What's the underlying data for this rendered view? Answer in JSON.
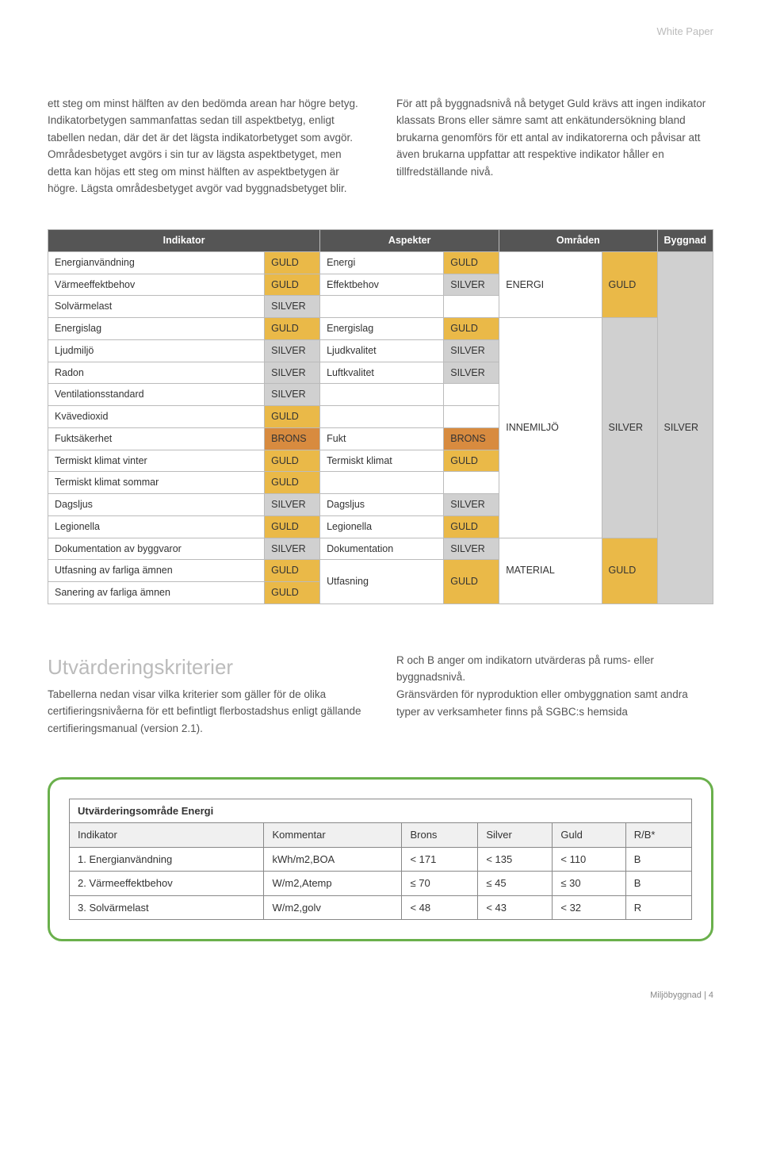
{
  "header_label": "White Paper",
  "intro": {
    "left": "ett steg om minst hälften av den bedömda arean har högre betyg. Indikatorbetygen sammanfattas sedan till aspektbetyg, enligt tabellen nedan, där det är det lägsta indikatorbetyget som avgör. Områdesbetyget avgörs i sin tur av lägsta aspektbetyget, men detta kan höjas ett steg om minst hälften av aspektbetygen är högre. Lägsta områdesbetyget avgör vad byggnadsbetyget blir.",
    "right": "För att på byggnadsnivå nå betyget Guld krävs att ingen indikator klassats Brons eller sämre samt att enkätundersökning bland brukarna genomförs för ett antal av indikatorerna och påvisar att även brukarna uppfattar att respektive indikator håller en tillfredställande nivå."
  },
  "main_table": {
    "headers": [
      "Indikator",
      "Aspekter",
      "Områden",
      "Byggnad"
    ],
    "colors": {
      "GULD": "#eab948",
      "SILVER": "#d0d0d0",
      "BRONS": "#d88b3f",
      "none": "#ffffff"
    },
    "rows": [
      {
        "indikator": "Energianvändning",
        "indikator_rating": "GULD",
        "aspekt": "Energi",
        "aspekt_rating": "GULD"
      },
      {
        "indikator": "Värmeeffektbehov",
        "indikator_rating": "GULD",
        "aspekt": "Effektbehov",
        "aspekt_rating": "SILVER"
      },
      {
        "indikator": "Solvärmelast",
        "indikator_rating": "SILVER",
        "aspekt": "",
        "aspekt_rating": ""
      },
      {
        "indikator": "Energislag",
        "indikator_rating": "GULD",
        "aspekt": "Energislag",
        "aspekt_rating": "GULD"
      },
      {
        "indikator": "Ljudmiljö",
        "indikator_rating": "SILVER",
        "aspekt": "Ljudkvalitet",
        "aspekt_rating": "SILVER"
      },
      {
        "indikator": "Radon",
        "indikator_rating": "SILVER",
        "aspekt": "Luftkvalitet",
        "aspekt_rating": "SILVER"
      },
      {
        "indikator": "Ventilationsstandard",
        "indikator_rating": "SILVER",
        "aspekt": "",
        "aspekt_rating": ""
      },
      {
        "indikator": "Kvävedioxid",
        "indikator_rating": "GULD",
        "aspekt": "",
        "aspekt_rating": ""
      },
      {
        "indikator": "Fuktsäkerhet",
        "indikator_rating": "BRONS",
        "aspekt": "Fukt",
        "aspekt_rating": "BRONS"
      },
      {
        "indikator": "Termiskt klimat vinter",
        "indikator_rating": "GULD",
        "aspekt": "Termiskt klimat",
        "aspekt_rating": "GULD"
      },
      {
        "indikator": "Termiskt klimat sommar",
        "indikator_rating": "GULD",
        "aspekt": "",
        "aspekt_rating": ""
      },
      {
        "indikator": "Dagsljus",
        "indikator_rating": "SILVER",
        "aspekt": "Dagsljus",
        "aspekt_rating": "SILVER"
      },
      {
        "indikator": "Legionella",
        "indikator_rating": "GULD",
        "aspekt": "Legionella",
        "aspekt_rating": "GULD"
      },
      {
        "indikator": "Dokumentation av byggvaror",
        "indikator_rating": "SILVER",
        "aspekt": "Dokumentation",
        "aspekt_rating": "SILVER"
      },
      {
        "indikator": "Utfasning av farliga ämnen",
        "indikator_rating": "GULD",
        "aspekt": "Utfasning",
        "aspekt_rating": "GULD",
        "aspekt_rowspan": 2
      },
      {
        "indikator": "Sanering av farliga ämnen",
        "indikator_rating": "GULD"
      }
    ],
    "omraden": [
      {
        "label": "ENERGI",
        "rating": "GULD",
        "startRow": 0,
        "span": 3
      },
      {
        "label": "INNEMILJÖ",
        "rating": "SILVER",
        "startRow": 3,
        "span": 10
      },
      {
        "label": "MATERIAL",
        "rating": "GULD",
        "startRow": 13,
        "span": 3
      }
    ],
    "byggnad": {
      "rating": "SILVER",
      "label": "SILVER"
    }
  },
  "criteria": {
    "title": "Utvärderingskriterier",
    "left": "Tabellerna nedan visar vilka kriterier som gäller för de olika certifieringsnivåerna för ett befintligt flerbostadshus enligt gällande certifieringsmanual (version 2.1).",
    "right": "R och B anger om indikatorn utvärderas på rums- eller byggnadsnivå.\nGränsvärden för nyproduktion eller ombyggnation samt andra typer av verksamheter finns på SGBC:s hemsida"
  },
  "eval_table": {
    "title": "Utvärderingsområde Energi",
    "headers": [
      "Indikator",
      "Kommentar",
      "Brons",
      "Silver",
      "Guld",
      "R/B*"
    ],
    "rows": [
      [
        "1. Energianvändning",
        "kWh/m2,BOA",
        "< 171",
        "< 135",
        "< 110",
        "B"
      ],
      [
        "2. Värmeeffektbehov",
        "W/m2,Atemp",
        "≤ 70",
        "≤ 45",
        "≤ 30",
        "B"
      ],
      [
        "3. Solvärmelast",
        "W/m2,golv",
        "< 48",
        "< 43",
        "< 32",
        "R"
      ]
    ]
  },
  "footer": "Miljöbyggnad |  4"
}
